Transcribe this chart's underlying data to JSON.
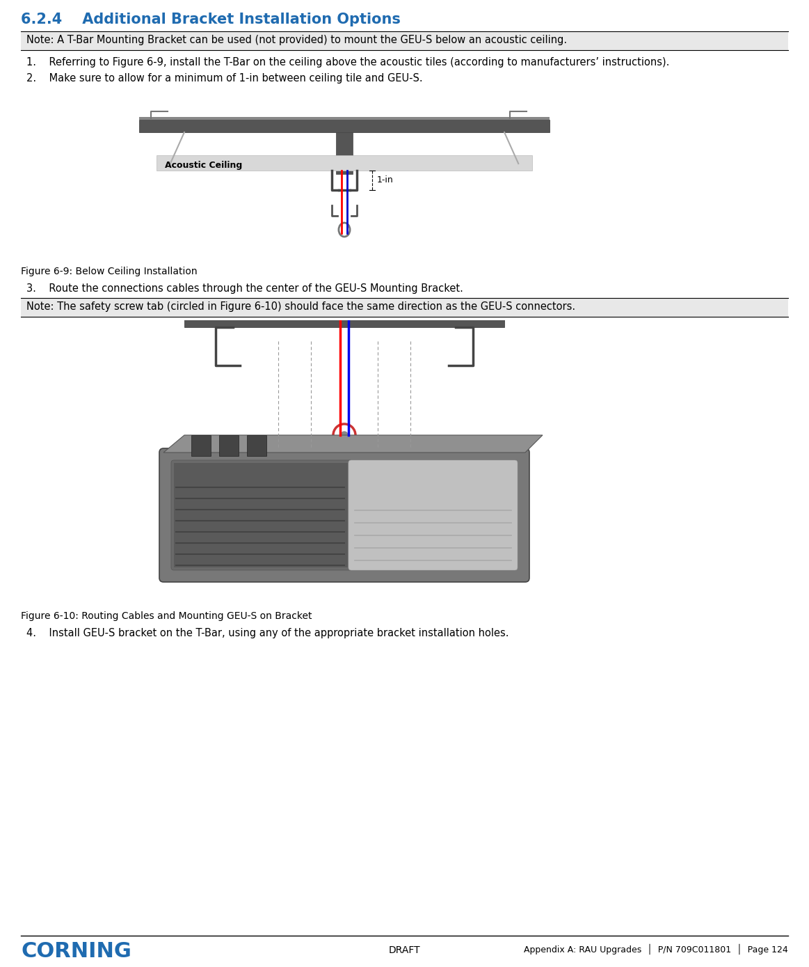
{
  "title": "6.2.4    Additional Bracket Installation Options",
  "title_color": "#1F6BB0",
  "title_fontsize": 15,
  "bg_color": "#ffffff",
  "note1": "Note: A T-Bar Mounting Bracket can be used (not provided) to mount the GEU-S below an acoustic ceiling.",
  "step1": "1.    Referring to Figure 6-9, install the T-Bar on the ceiling above the acoustic tiles (according to manufacturers’ instructions).",
  "step2": "2.    Make sure to allow for a minimum of 1-in between ceiling tile and GEU-S.",
  "fig1_caption": "Figure 6-9: Below Ceiling Installation",
  "step3": "3.    Route the connections cables through the center of the GEU-S Mounting Bracket.",
  "note2": "Note: The safety screw tab (circled in Figure 6-10) should face the same direction as the GEU-S connectors.",
  "fig2_caption": "Figure 6-10: Routing Cables and Mounting GEU-S on Bracket",
  "step4": "4.    Install GEU-S bracket on the T-Bar, using any of the appropriate bracket installation holes.",
  "footer_left": "CORNING",
  "footer_left_color": "#1F6BB0",
  "footer_center": "DRAFT",
  "footer_right": "Appendix A: RAU Upgrades  │  P/N 709C011801  │  Page 124",
  "body_fontsize": 10.5,
  "caption_fontsize": 10,
  "note_fontsize": 10.5,
  "lmargin": 0.026,
  "rmargin": 0.974
}
